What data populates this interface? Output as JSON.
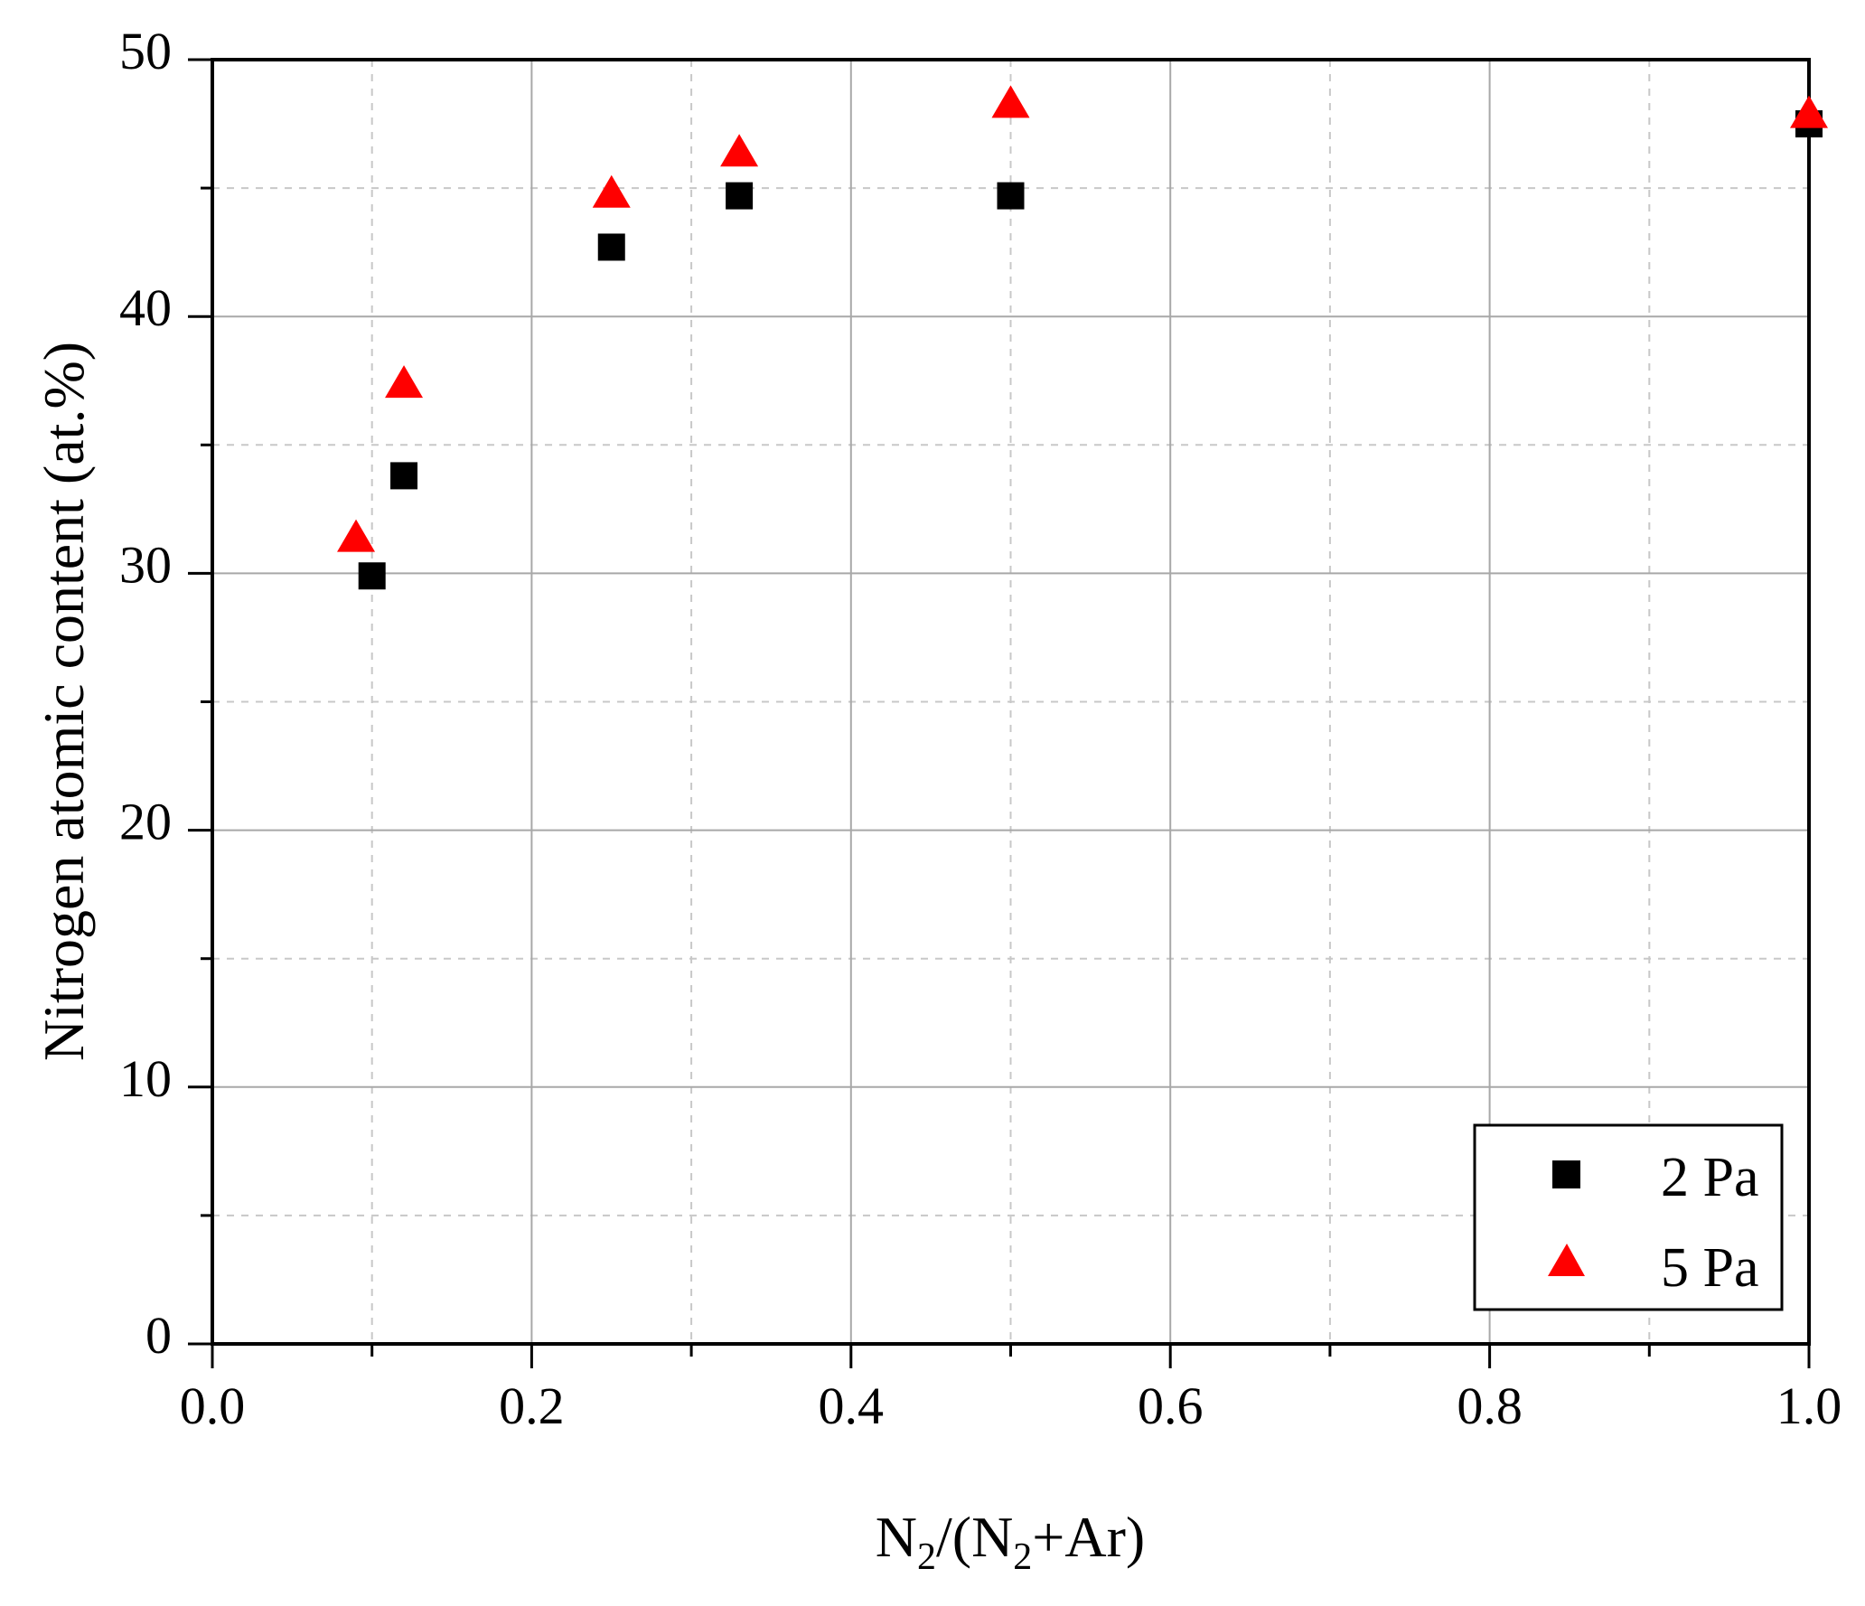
{
  "chart_data": {
    "type": "scatter",
    "title": "",
    "xlabel": "N2/(N2+Ar)",
    "xlabel_parts": {
      "a": "N",
      "sub1": "2",
      "b": "/(N",
      "sub2": "2",
      "c": "+Ar)"
    },
    "ylabel": "Nitrogen atomic content (at.%)",
    "xlim": [
      0.0,
      1.0
    ],
    "ylim": [
      0,
      50
    ],
    "x_ticks": [
      0.0,
      0.2,
      0.4,
      0.6,
      0.8,
      1.0
    ],
    "x_tick_labels": [
      "0.0",
      "0.2",
      "0.4",
      "0.6",
      "0.8",
      "1.0"
    ],
    "x_minor_ticks": [
      0.1,
      0.3,
      0.5,
      0.7,
      0.9
    ],
    "y_ticks": [
      0,
      10,
      20,
      30,
      40,
      50
    ],
    "y_tick_labels": [
      "0",
      "10",
      "20",
      "30",
      "40",
      "50"
    ],
    "y_minor_ticks": [
      5,
      15,
      25,
      35,
      45
    ],
    "grid": true,
    "legend_position": "lower right",
    "series": [
      {
        "name": "2 Pa",
        "marker": "square",
        "color": "#000000",
        "x": [
          0.1,
          0.12,
          0.25,
          0.33,
          0.5,
          1.0
        ],
        "y": [
          29.9,
          33.8,
          42.7,
          44.7,
          44.7,
          47.5
        ]
      },
      {
        "name": "5 Pa",
        "marker": "triangle",
        "color": "#ff0000",
        "x": [
          0.09,
          0.12,
          0.25,
          0.33,
          0.5,
          1.0
        ],
        "y": [
          31.4,
          37.4,
          44.8,
          46.4,
          48.3,
          47.9
        ]
      }
    ]
  },
  "colors": {
    "axis": "#000000",
    "major_grid": "#a8a8a8",
    "minor_grid": "#c8c8c8",
    "background": "#ffffff"
  }
}
